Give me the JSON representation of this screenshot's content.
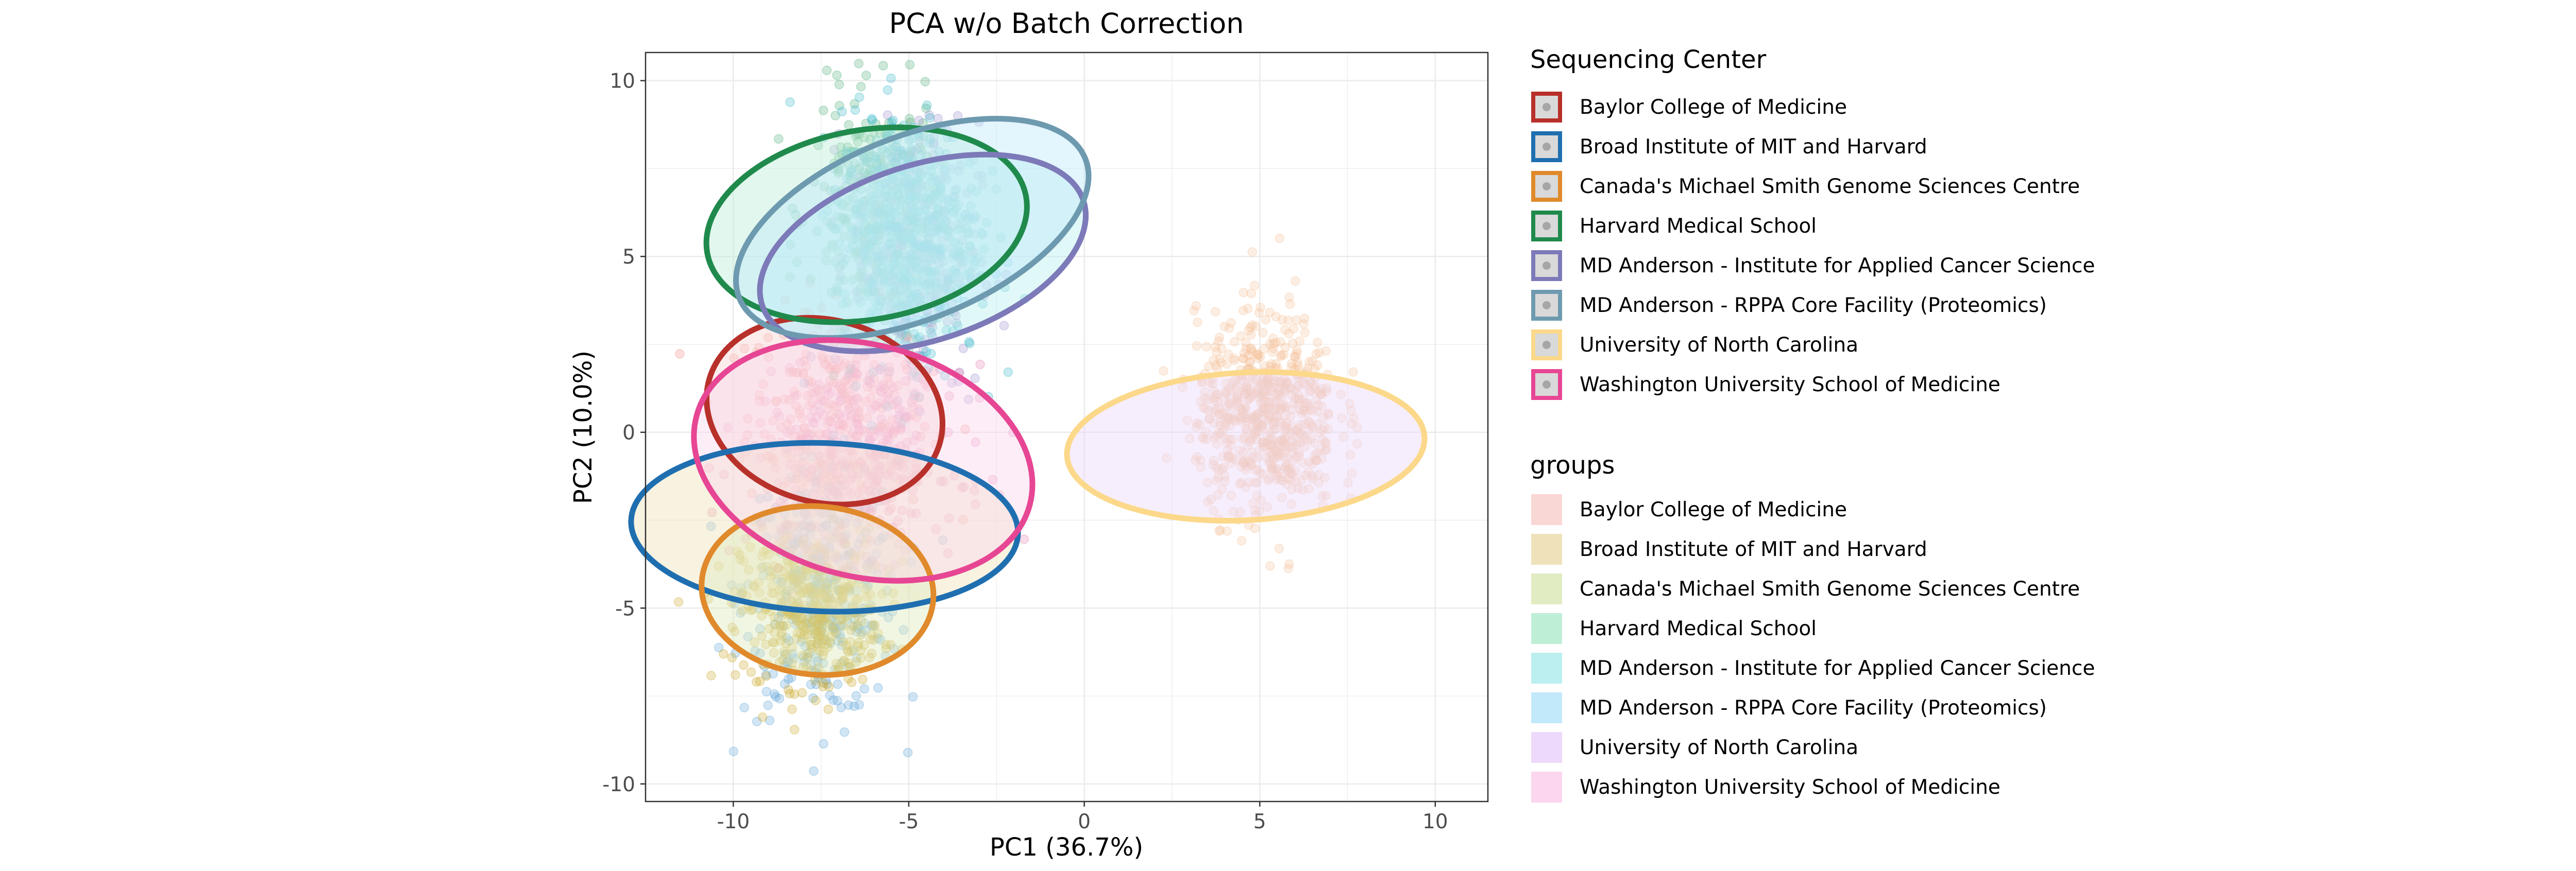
{
  "chart_data": {
    "type": "scatter",
    "title": "PCA w/o Batch Correction",
    "xlabel": "PC1 (36.7%)",
    "ylabel": "PC2 (10.0%)",
    "xlim": [
      -12.5,
      11.5
    ],
    "ylim": [
      -10.5,
      10.8
    ],
    "xticks": [
      -10,
      -5,
      0,
      5,
      10
    ],
    "yticks": [
      10,
      5,
      0,
      -5,
      -10
    ],
    "xtick_labels": [
      "-10",
      "-5",
      "0",
      "5",
      "10"
    ],
    "ytick_labels": [
      "10",
      "5",
      "0",
      "-5",
      "-10"
    ],
    "grid": true,
    "legend_position": "right",
    "legend_sequencing": {
      "title": "Sequencing Center",
      "entries": [
        {
          "label": "Baylor College of Medicine",
          "color": "#b8302a"
        },
        {
          "label": "Broad Institute of MIT and Harvard",
          "color": "#1f6fb0"
        },
        {
          "label": "Canada's Michael Smith Genome Sciences Centre",
          "color": "#e08a2c"
        },
        {
          "label": "Harvard Medical School",
          "color": "#1f8a4c"
        },
        {
          "label": "MD Anderson - Institute for Applied Cancer Science",
          "color": "#7c7ab8"
        },
        {
          "label": "MD Anderson - RPPA Core Facility (Proteomics)",
          "color": "#6e9ab0"
        },
        {
          "label": "University of North Carolina",
          "color": "#fcd88a"
        },
        {
          "label": "Washington University School of Medicine",
          "color": "#e74694"
        }
      ]
    },
    "legend_groups": {
      "title": "groups",
      "entries": [
        {
          "label": "Baylor College of Medicine",
          "color": "#f9d7d5"
        },
        {
          "label": "Broad Institute of MIT and Harvard",
          "color": "#efe2ba"
        },
        {
          "label": "Canada's Michael Smith Genome Sciences Centre",
          "color": "#e1ecc2"
        },
        {
          "label": "Harvard Medical School",
          "color": "#bfeed7"
        },
        {
          "label": "MD Anderson - Institute for Applied Cancer Science",
          "color": "#bcefef"
        },
        {
          "label": "MD Anderson - RPPA Core Facility (Proteomics)",
          "color": "#c2e9fa"
        },
        {
          "label": "University of North Carolina",
          "color": "#ecd9fb"
        },
        {
          "label": "Washington University School of Medicine",
          "color": "#fbd6ee"
        }
      ]
    },
    "series": [
      {
        "name": "Baylor College of Medicine",
        "color": "#b8302a",
        "fill": "#f08a80",
        "center": [
          -7.0,
          0.5
        ],
        "sd": [
          1.3,
          1.5
        ],
        "n": 300,
        "ellipse": {
          "cx": -7.4,
          "cy": 0.6,
          "rx": 2.6,
          "ry": 3.4,
          "angle": -75
        }
      },
      {
        "name": "Broad Institute of MIT and Harvard",
        "color": "#1f6fb0",
        "fill": "#5aa2d6",
        "center": [
          -7.5,
          -4.5
        ],
        "sd": [
          1.1,
          1.8
        ],
        "n": 380,
        "ellipse": {
          "cx": -7.4,
          "cy": -2.7,
          "rx": 2.4,
          "ry": 5.5,
          "angle": -88
        }
      },
      {
        "name": "Canada's Michael Smith Genome Sciences Centre",
        "color": "#e08a2c",
        "fill": "#c9a422",
        "center": [
          -7.8,
          -5.0
        ],
        "sd": [
          1.0,
          1.1
        ],
        "n": 420,
        "ellipse": {
          "cx": -7.6,
          "cy": -4.5,
          "rx": 2.4,
          "ry": 3.3,
          "angle": -85
        }
      },
      {
        "name": "Harvard Medical School",
        "color": "#1f8a4c",
        "fill": "#4cae77",
        "center": [
          -6.0,
          6.3
        ],
        "sd": [
          0.9,
          1.6
        ],
        "n": 330,
        "ellipse": {
          "cx": -6.2,
          "cy": 5.9,
          "rx": 2.7,
          "ry": 4.6,
          "angle": -100
        }
      },
      {
        "name": "MD Anderson - Institute for Applied Cancer Science",
        "color": "#7c7ab8",
        "fill": "#9a8ccc",
        "center": [
          -4.8,
          5.0
        ],
        "sd": [
          0.9,
          1.9
        ],
        "n": 300,
        "ellipse": {
          "cx": -4.6,
          "cy": 5.1,
          "rx": 2.5,
          "ry": 4.8,
          "angle": -108
        }
      },
      {
        "name": "MD Anderson - RPPA Core Facility (Proteomics)",
        "color": "#6e9ab0",
        "fill": "#35b8c8",
        "center": [
          -5.0,
          5.6
        ],
        "sd": [
          1.0,
          1.8
        ],
        "n": 500,
        "ellipse": {
          "cx": -4.9,
          "cy": 5.8,
          "rx": 2.6,
          "ry": 5.3,
          "angle": -112
        }
      },
      {
        "name": "University of North Carolina",
        "color": "#fcd88a",
        "fill": "#f6c39a",
        "center": [
          5.2,
          0.5
        ],
        "sd": [
          1.0,
          1.4
        ],
        "n": 650,
        "ellipse": {
          "cx": 4.6,
          "cy": -0.4,
          "rx": 5.1,
          "ry": 2.1,
          "angle": -3
        }
      },
      {
        "name": "Washington University School of Medicine",
        "color": "#e74694",
        "fill": "#e67fb0",
        "center": [
          -6.5,
          -0.8
        ],
        "sd": [
          1.5,
          1.3
        ],
        "n": 320,
        "ellipse": {
          "cx": -6.3,
          "cy": -0.8,
          "rx": 3.3,
          "ry": 4.9,
          "angle": -75
        }
      }
    ]
  }
}
